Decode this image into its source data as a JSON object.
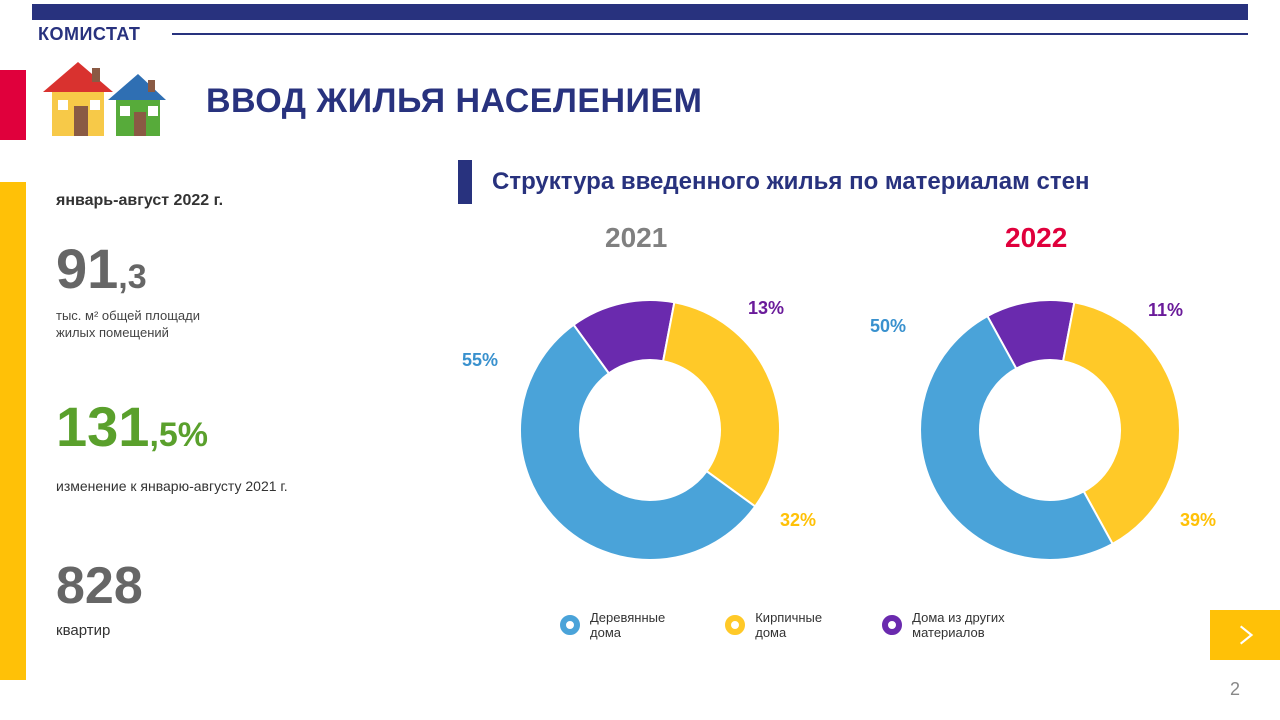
{
  "brand": "КОМИСТАТ",
  "title": "ВВОД ЖИЛЬЯ НАСЕЛЕНИЕМ",
  "period": "январь-август 2022 г.",
  "stat1": {
    "big": "91",
    "small": ",3",
    "sub": "тыс. м²  общей площади\nжилых помещений"
  },
  "stat2": {
    "big": "131",
    "small": ",5%",
    "sub": "изменение к январю-августу 2021 г."
  },
  "stat3": {
    "value": "828",
    "sub": "квартир"
  },
  "chart": {
    "title": "Структура введенного жилья по материалам стен",
    "colors": {
      "wood": "#4aa3d9",
      "brick": "#ffc928",
      "other": "#6a2aae",
      "bg": "#ffffff",
      "yearGray": "#808080",
      "yearRed": "#e0003c",
      "accentNavy": "#28327e"
    },
    "years": {
      "2021": {
        "label": "2021",
        "slices": [
          {
            "key": "wood",
            "pct": 55
          },
          {
            "key": "brick",
            "pct": 32
          },
          {
            "key": "other",
            "pct": 13
          }
        ]
      },
      "2022": {
        "label": "2022",
        "slices": [
          {
            "key": "wood",
            "pct": 50
          },
          {
            "key": "brick",
            "pct": 39
          },
          {
            "key": "other",
            "pct": 11
          }
        ]
      }
    },
    "donut": {
      "outerRadius": 130,
      "innerRadius": 70
    },
    "legend": [
      {
        "key": "wood",
        "label": "Деревянные\nдома"
      },
      {
        "key": "brick",
        "label": "Кирпичные\nдома"
      },
      {
        "key": "other",
        "label": "Дома из других\nматериалов"
      }
    ],
    "labels": {
      "2021": {
        "wood": "55%",
        "brick": "32%",
        "other": "13%"
      },
      "2022": {
        "wood": "50%",
        "brick": "39%",
        "other": "11%"
      }
    }
  },
  "stat1Color": "#6e6e6e",
  "stat2Color": "#5aa02c",
  "pageNumber": "2"
}
